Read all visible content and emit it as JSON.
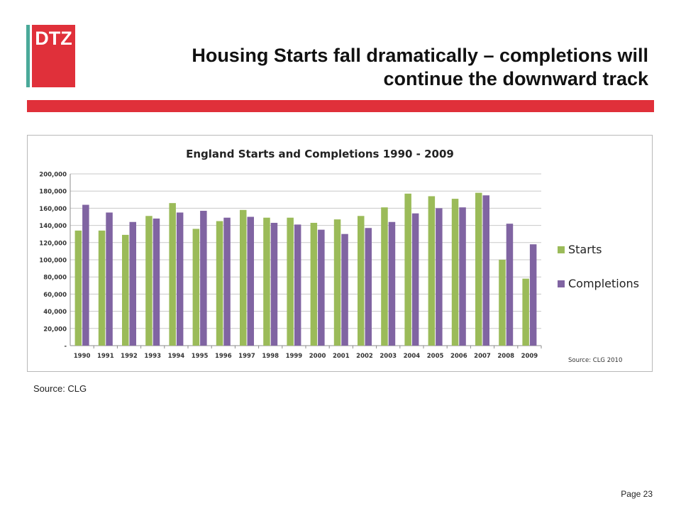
{
  "logo": {
    "text": "DTZ"
  },
  "slide": {
    "title_line1": "Housing Starts fall dramatically – completions will",
    "title_line2": "continue the downward track",
    "source": "Source: CLG",
    "page": "Page 23"
  },
  "colors": {
    "brand_red": "#e0303a",
    "brand_teal": "#4aa999",
    "starts": "#9bbb59",
    "completions": "#8064a2"
  },
  "chart_data": {
    "type": "bar",
    "title": "England Starts and Completions 1990 - 2009",
    "categories": [
      "1990",
      "1991",
      "1992",
      "1993",
      "1994",
      "1995",
      "1996",
      "1997",
      "1998",
      "1999",
      "2000",
      "2001",
      "2002",
      "2003",
      "2004",
      "2005",
      "2006",
      "2007",
      "2008",
      "2009"
    ],
    "series": [
      {
        "name": "Starts",
        "values": [
          134000,
          134000,
          129000,
          151000,
          166000,
          136000,
          145000,
          158000,
          149000,
          149000,
          143000,
          147000,
          151000,
          161000,
          177000,
          174000,
          171000,
          178000,
          100000,
          78000
        ]
      },
      {
        "name": "Completions",
        "values": [
          164000,
          155000,
          144000,
          148000,
          155000,
          157000,
          149000,
          150000,
          143000,
          141000,
          135000,
          130000,
          137000,
          144000,
          154000,
          160000,
          161000,
          175000,
          142000,
          118000
        ]
      }
    ],
    "ylim": [
      0,
      200000
    ],
    "y_ticks": [
      "-",
      "20,000",
      "40,000",
      "60,000",
      "80,000",
      "100,000",
      "120,000",
      "140,000",
      "160,000",
      "180,000",
      "200,000"
    ],
    "grid": true,
    "legend_position": "right",
    "annotation": "Source: CLG 2010"
  }
}
